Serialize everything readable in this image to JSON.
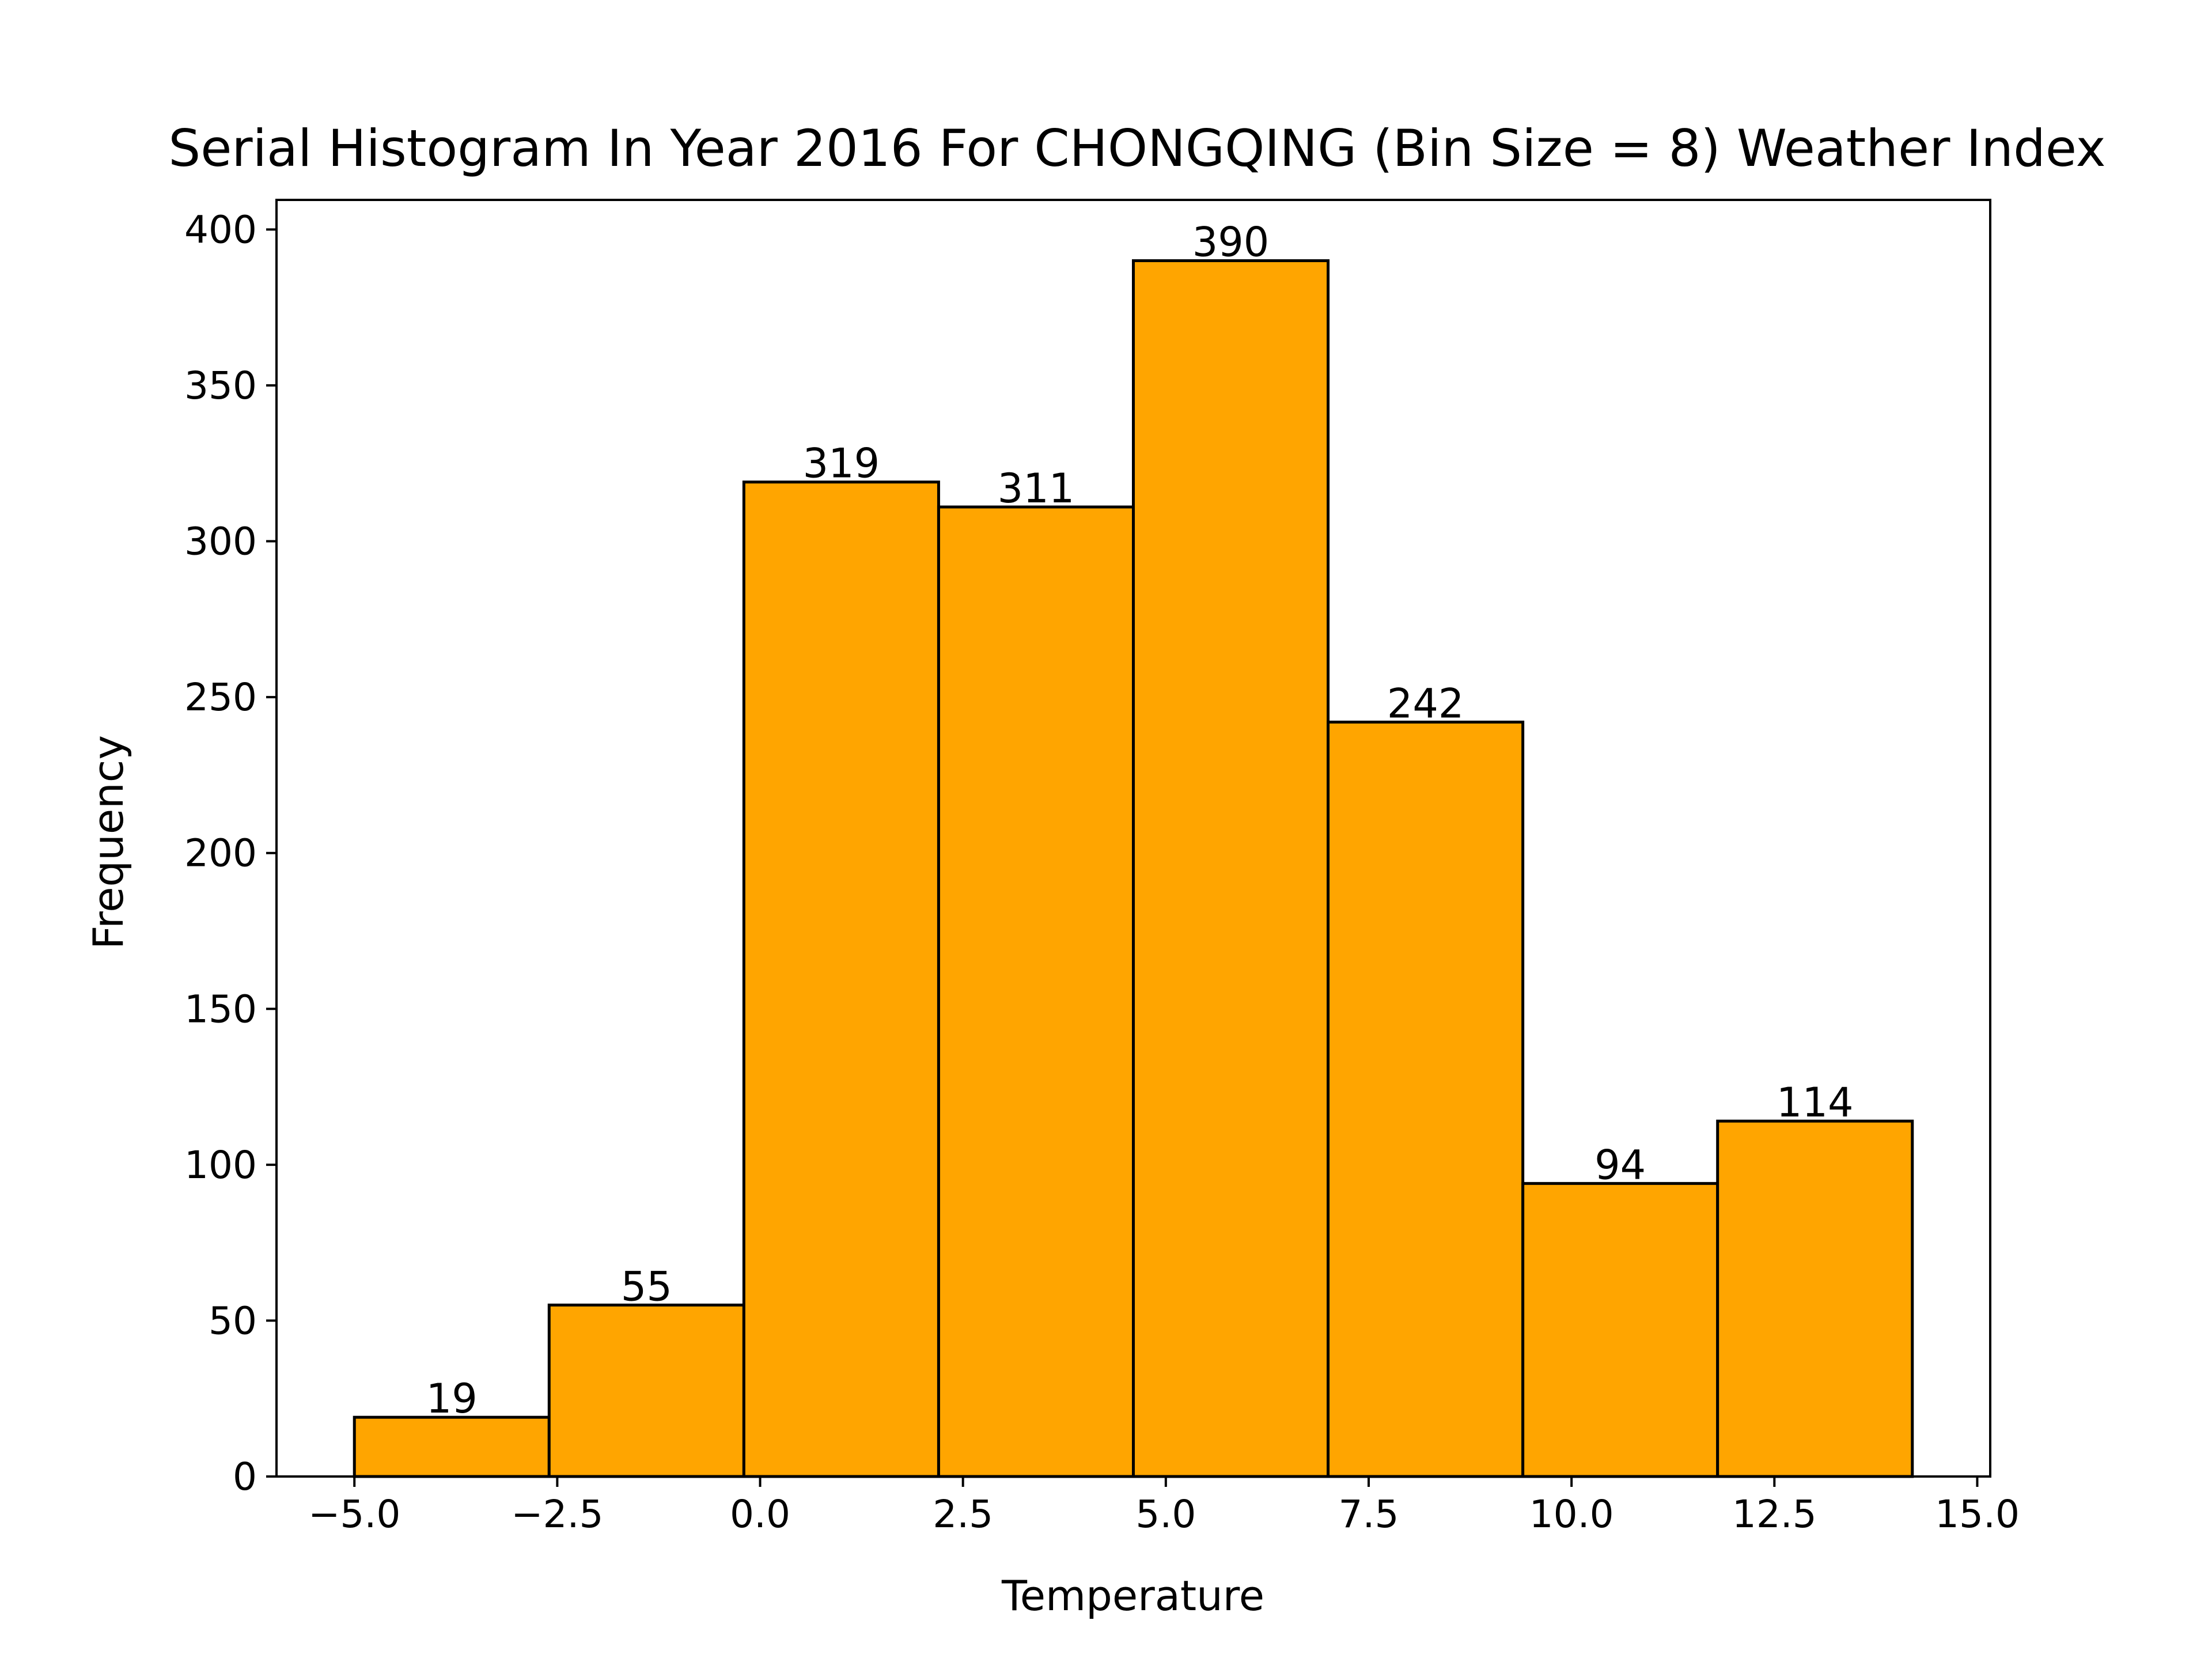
{
  "chart_data": {
    "type": "bar",
    "title": "Serial Histogram In Year 2016 For CHONGQING (Bin Size = 8) Weather Index",
    "xlabel": "Temperature",
    "ylabel": "Frequency",
    "bin_edges": [
      -5.0,
      -2.6,
      -0.2,
      2.2,
      4.6,
      7.0,
      9.4,
      11.8,
      14.2
    ],
    "values": [
      19,
      55,
      319,
      311,
      390,
      242,
      94,
      114
    ],
    "xlim": [
      -5.96,
      15.16
    ],
    "ylim": [
      0,
      409.5
    ],
    "xticks": [
      -5.0,
      -2.5,
      0.0,
      2.5,
      5.0,
      7.5,
      10.0,
      12.5,
      15.0
    ],
    "xtick_labels": [
      "−5.0",
      "−2.5",
      "0.0",
      "2.5",
      "5.0",
      "7.5",
      "10.0",
      "12.5",
      "15.0"
    ],
    "yticks": [
      0,
      50,
      100,
      150,
      200,
      250,
      300,
      350,
      400
    ],
    "ytick_labels": [
      "0",
      "50",
      "100",
      "150",
      "200",
      "250",
      "300",
      "350",
      "400"
    ],
    "grid": false,
    "legend": "none",
    "colors": {
      "bar_fill": "#ffa500",
      "bar_edge": "#000000"
    }
  }
}
